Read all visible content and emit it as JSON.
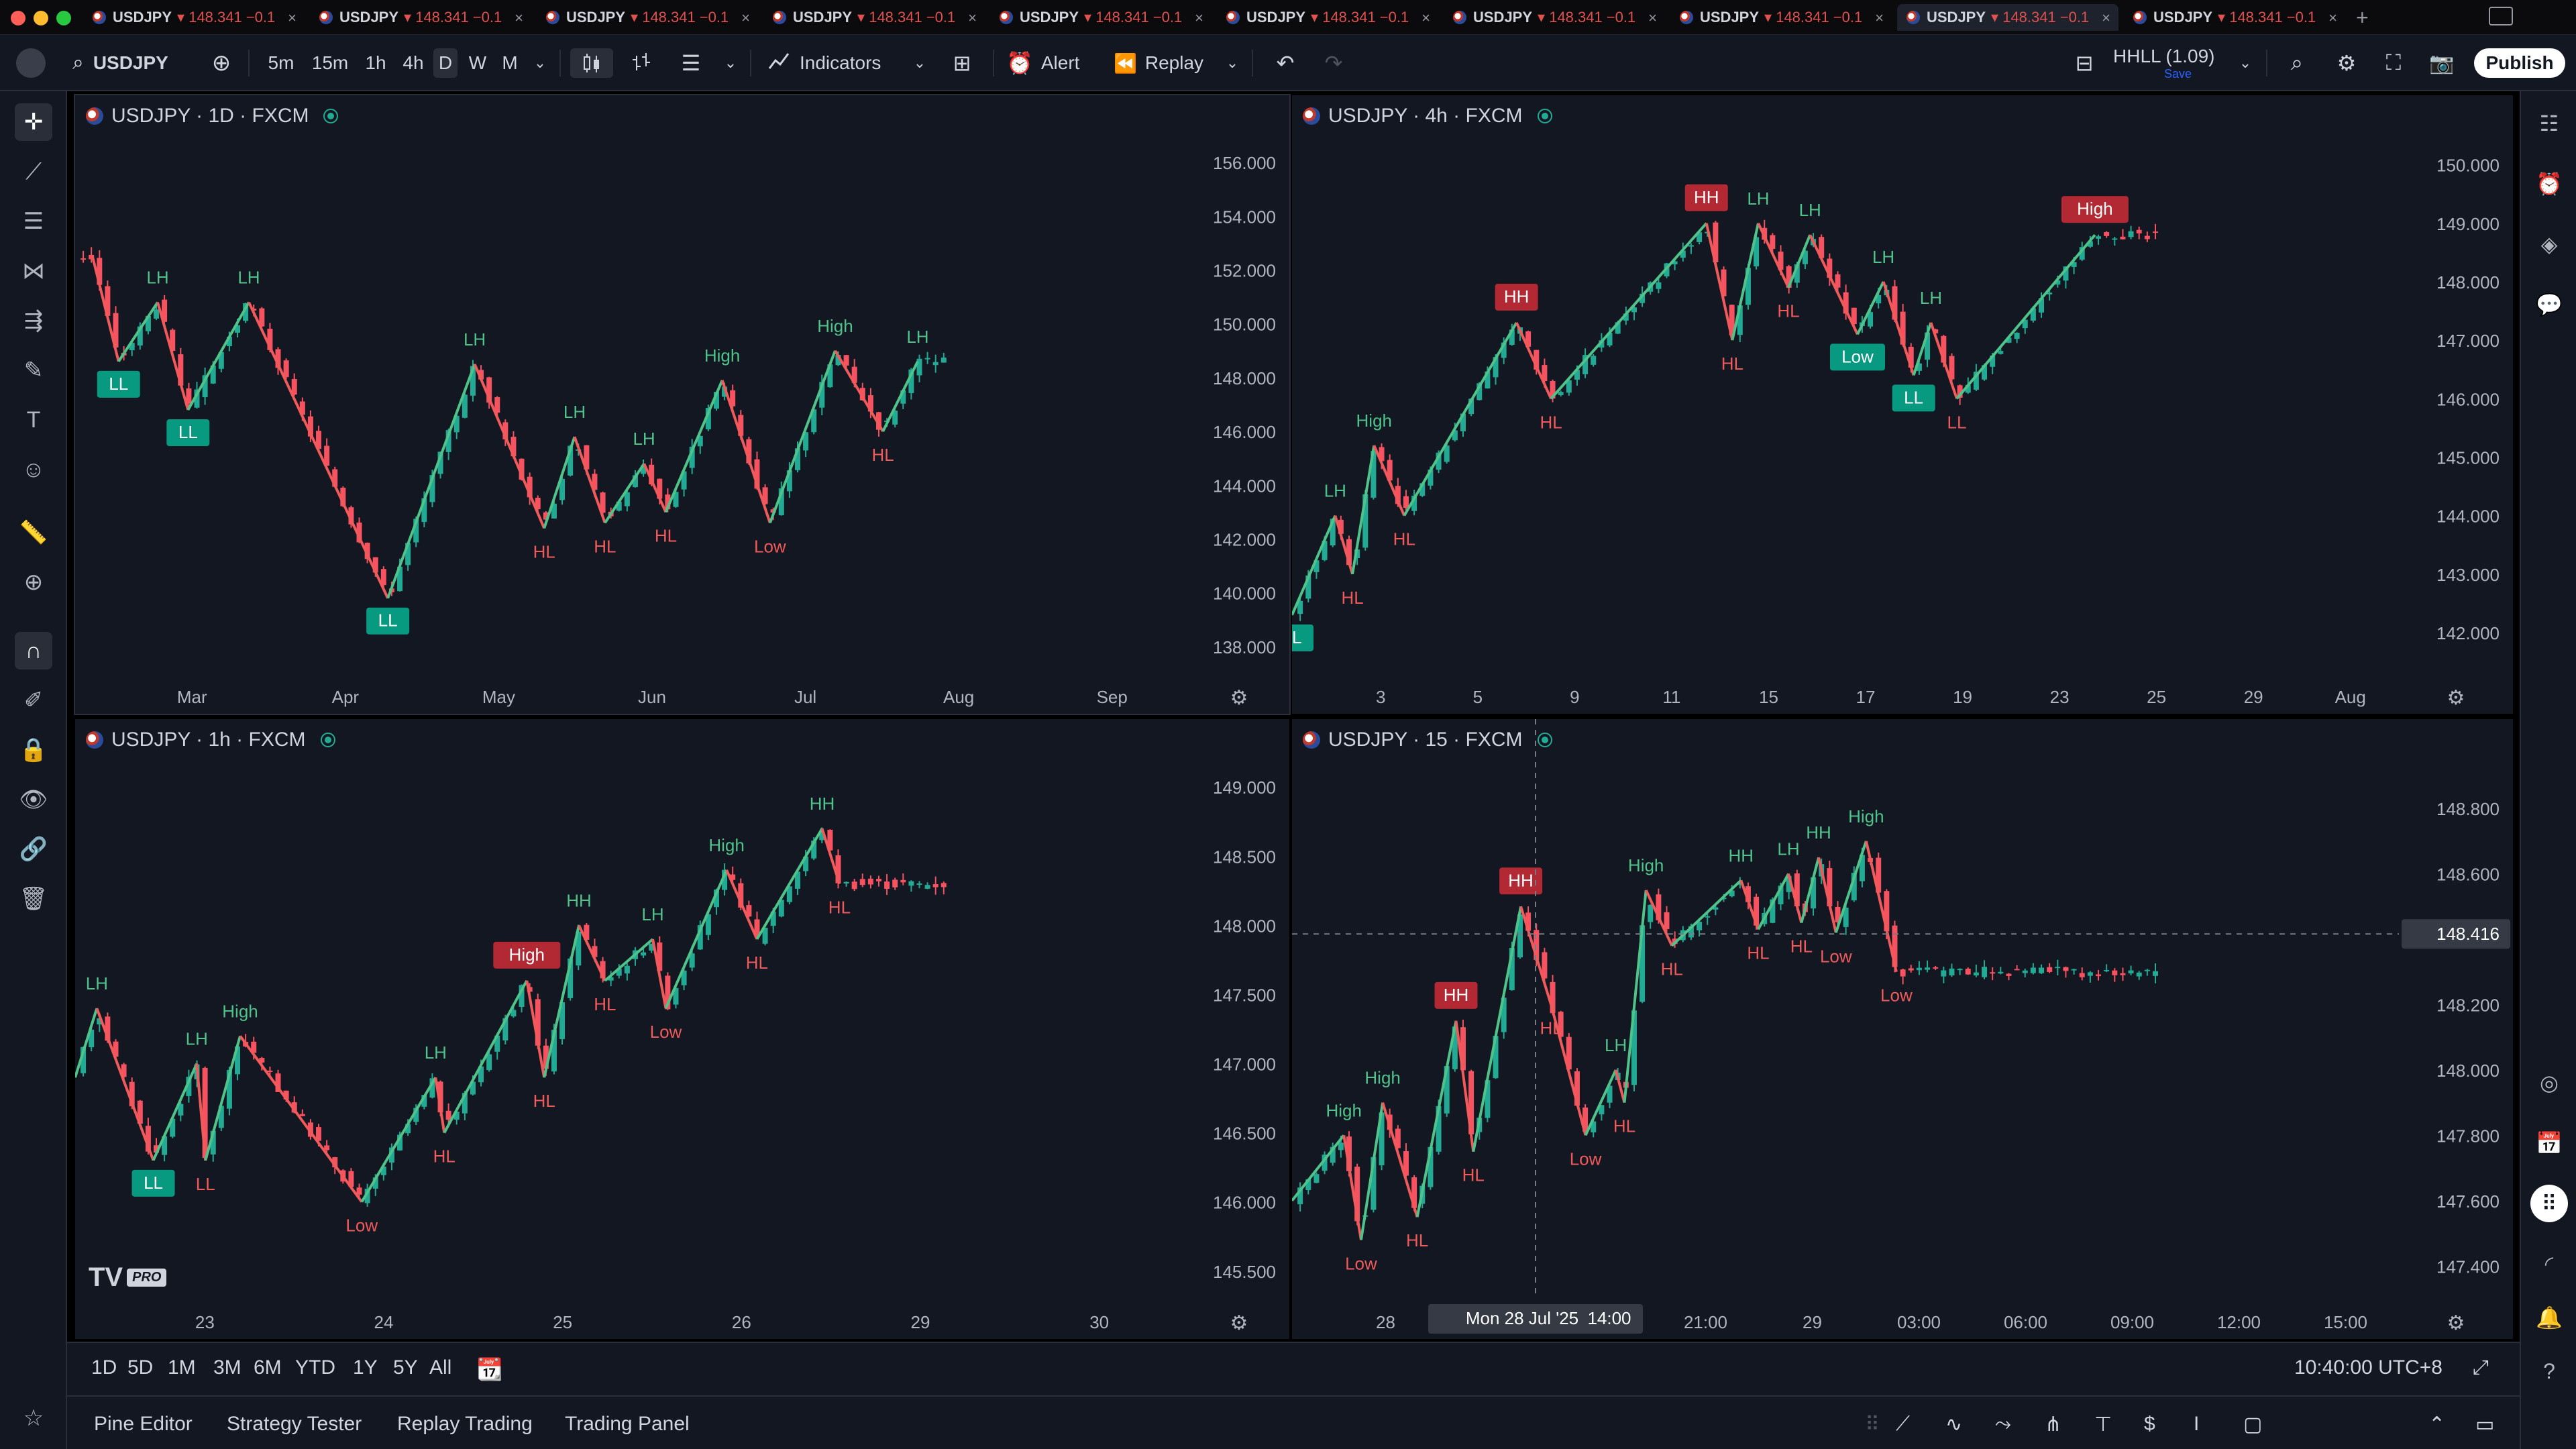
{
  "tabs": [
    {
      "symbol": "USDJPY",
      "price": "▾ 148.341",
      "change": "−0.1"
    },
    {
      "symbol": "USDJPY",
      "price": "▾ 148.341",
      "change": "−0.1"
    },
    {
      "symbol": "USDJPY",
      "price": "▾ 148.341",
      "change": "−0.1"
    },
    {
      "symbol": "USDJPY",
      "price": "▾ 148.341",
      "change": "−0.1"
    },
    {
      "symbol": "USDJPY",
      "price": "▾ 148.341",
      "change": "−0.1"
    },
    {
      "symbol": "USDJPY",
      "price": "▾ 148.341",
      "change": "−0.1"
    },
    {
      "symbol": "USDJPY",
      "price": "▾ 148.341",
      "change": "−0.1"
    },
    {
      "symbol": "USDJPY",
      "price": "▾ 148.341",
      "change": "−0.1"
    },
    {
      "symbol": "USDJPY",
      "price": "▾ 148.341",
      "change": "−0.1"
    },
    {
      "symbol": "USDJPY",
      "price": "▾ 148.341",
      "change": "−0.1"
    }
  ],
  "toolbar": {
    "symbol": "USDJPY",
    "intervals": [
      "5m",
      "15m",
      "1h",
      "4h",
      "D",
      "W",
      "M"
    ],
    "selected_interval": "D",
    "indicators_label": "Indicators",
    "alert_label": "Alert",
    "replay_label": "Replay",
    "layout_name": "HHLL (1.09)",
    "layout_status": "Save",
    "publish_label": "Publish"
  },
  "colors": {
    "up": "#22ab94",
    "down": "#f7525f",
    "up_label": "#4fc38a",
    "down_label": "#f05a5a",
    "box_green": "#089981",
    "box_red": "#b22833",
    "bg": "#131722",
    "axis_text": "#b2b5be"
  },
  "panes": [
    {
      "legend": "USDJPY · 1D · FXCM",
      "y_ticks": [
        "156.000",
        "154.000",
        "152.000",
        "150.000",
        "148.000",
        "146.000",
        "144.000",
        "142.000",
        "140.000",
        "138.000"
      ],
      "y_range": [
        137,
        157
      ],
      "x_ticks": [
        "Mar",
        "Apr",
        "May",
        "Jun",
        "Jul",
        "Aug",
        "Sep"
      ],
      "pivots": [
        {
          "t": 0.02,
          "p": 152.5
        },
        {
          "t": 0.05,
          "p": 148.6,
          "label": "LL",
          "box": true,
          "color": "green"
        },
        {
          "t": 0.095,
          "p": 150.8,
          "label": "LH",
          "color": "green"
        },
        {
          "t": 0.13,
          "p": 146.8,
          "label": "LL",
          "box": true,
          "color": "green"
        },
        {
          "t": 0.2,
          "p": 150.8,
          "label": "LH",
          "color": "green"
        },
        {
          "t": 0.36,
          "p": 139.8,
          "label": "LL",
          "box": true,
          "color": "green"
        },
        {
          "t": 0.46,
          "p": 148.5,
          "label": "LH",
          "color": "green"
        },
        {
          "t": 0.54,
          "p": 142.4,
          "label": "HL",
          "color": "red"
        },
        {
          "t": 0.575,
          "p": 145.8,
          "label": "LH",
          "color": "green"
        },
        {
          "t": 0.61,
          "p": 142.6,
          "label": "HL",
          "color": "red"
        },
        {
          "t": 0.655,
          "p": 144.8,
          "label": "LH",
          "color": "green"
        },
        {
          "t": 0.68,
          "p": 143.0,
          "label": "HL",
          "color": "red"
        },
        {
          "t": 0.745,
          "p": 147.9,
          "label": "High",
          "color": "green"
        },
        {
          "t": 0.8,
          "p": 142.6,
          "label": "Low",
          "color": "red"
        },
        {
          "t": 0.875,
          "p": 149.0,
          "label": "High",
          "color": "green"
        },
        {
          "t": 0.93,
          "p": 146.0,
          "label": "HL",
          "color": "red"
        },
        {
          "t": 0.97,
          "p": 148.6,
          "label": "LH",
          "color": "green"
        }
      ]
    },
    {
      "legend": "USDJPY · 4h · FXCM",
      "y_ticks": [
        "150.000",
        "149.000",
        "148.000",
        "147.000",
        "146.000",
        "145.000",
        "144.000",
        "143.000",
        "142.000"
      ],
      "y_range": [
        141.3,
        150.5
      ],
      "x_ticks": [
        "3",
        "5",
        "9",
        "11",
        "15",
        "17",
        "19",
        "23",
        "25",
        "29",
        "Aug"
      ],
      "pivots": [
        {
          "t": 0.0,
          "p": 142.3,
          "label": "LL",
          "box": true,
          "color": "green"
        },
        {
          "t": 0.05,
          "p": 144.0,
          "label": "LH",
          "color": "green"
        },
        {
          "t": 0.07,
          "p": 143.0,
          "label": "HL",
          "color": "red"
        },
        {
          "t": 0.095,
          "p": 145.2,
          "label": "High",
          "color": "green"
        },
        {
          "t": 0.13,
          "p": 144.0,
          "label": "HL",
          "color": "red"
        },
        {
          "t": 0.26,
          "p": 147.3,
          "label": "HH",
          "box": true,
          "color": "red"
        },
        {
          "t": 0.3,
          "p": 146.0,
          "label": "HL",
          "color": "red"
        },
        {
          "t": 0.48,
          "p": 149.0,
          "label": "HH",
          "box": true,
          "color": "red"
        },
        {
          "t": 0.51,
          "p": 147.0,
          "label": "HL",
          "color": "red"
        },
        {
          "t": 0.54,
          "p": 149.0,
          "label": "LH",
          "color": "green"
        },
        {
          "t": 0.575,
          "p": 147.9,
          "label": "HL",
          "color": "red"
        },
        {
          "t": 0.6,
          "p": 148.8,
          "label": "LH",
          "color": "green"
        },
        {
          "t": 0.655,
          "p": 147.1,
          "label": "Low",
          "box": true,
          "color": "green"
        },
        {
          "t": 0.685,
          "p": 148.0,
          "label": "LH",
          "color": "green"
        },
        {
          "t": 0.72,
          "p": 146.4,
          "label": "LL",
          "box": true,
          "color": "green"
        },
        {
          "t": 0.74,
          "p": 147.3,
          "label": "LH",
          "color": "green"
        },
        {
          "t": 0.77,
          "p": 146.0,
          "label": "LL",
          "color": "red"
        },
        {
          "t": 0.93,
          "p": 148.8,
          "label": "High",
          "box": true,
          "color": "red"
        }
      ]
    },
    {
      "legend": "USDJPY · 1h · FXCM",
      "y_ticks": [
        "149.000",
        "148.500",
        "148.000",
        "147.500",
        "147.000",
        "146.500",
        "146.000",
        "145.500"
      ],
      "y_range": [
        145.3,
        149.2
      ],
      "x_ticks": [
        "23",
        "24",
        "25",
        "26",
        "29",
        "30"
      ],
      "pivots": [
        {
          "t": 0.0,
          "p": 146.9
        },
        {
          "t": 0.025,
          "p": 147.4,
          "label": "LH",
          "color": "green"
        },
        {
          "t": 0.09,
          "p": 146.3,
          "label": "LL",
          "box": true,
          "color": "green"
        },
        {
          "t": 0.14,
          "p": 147.0,
          "label": "LH",
          "color": "green"
        },
        {
          "t": 0.15,
          "p": 146.3,
          "label": "LL",
          "color": "red"
        },
        {
          "t": 0.19,
          "p": 147.2,
          "label": "High",
          "color": "green"
        },
        {
          "t": 0.33,
          "p": 146.0,
          "label": "Low",
          "color": "red"
        },
        {
          "t": 0.415,
          "p": 146.9,
          "label": "LH",
          "color": "green"
        },
        {
          "t": 0.425,
          "p": 146.5,
          "label": "HL",
          "color": "red"
        },
        {
          "t": 0.52,
          "p": 147.6,
          "label": "High",
          "box": true,
          "color": "red"
        },
        {
          "t": 0.54,
          "p": 146.9,
          "label": "HL",
          "color": "red"
        },
        {
          "t": 0.58,
          "p": 148.0,
          "label": "HH",
          "color": "green"
        },
        {
          "t": 0.61,
          "p": 147.6,
          "label": "HL",
          "color": "red"
        },
        {
          "t": 0.665,
          "p": 147.9,
          "label": "LH",
          "color": "green"
        },
        {
          "t": 0.68,
          "p": 147.4,
          "label": "Low",
          "color": "red"
        },
        {
          "t": 0.75,
          "p": 148.4,
          "label": "High",
          "color": "green"
        },
        {
          "t": 0.785,
          "p": 147.9,
          "label": "HL",
          "color": "red"
        },
        {
          "t": 0.86,
          "p": 148.7,
          "label": "HH",
          "color": "green"
        },
        {
          "t": 0.88,
          "p": 148.3,
          "label": "HL",
          "color": "red"
        }
      ]
    },
    {
      "legend": "USDJPY · 15 · FXCM",
      "y_ticks": [
        "148.800",
        "148.600",
        "148.400",
        "148.200",
        "148.000",
        "147.800",
        "147.600",
        "147.400"
      ],
      "y_range": [
        147.3,
        148.95
      ],
      "x_ticks": [
        "28",
        "09:00",
        "18:00",
        "21:00",
        "29",
        "03:00",
        "06:00",
        "09:00",
        "12:00",
        "15:00"
      ],
      "crosshair_date": "Mon 28 Jul '25",
      "crosshair_time": "14:00",
      "current_price": "148.416",
      "pivots": [
        {
          "t": 0.0,
          "p": 147.6
        },
        {
          "t": 0.06,
          "p": 147.8,
          "label": "High",
          "color": "green"
        },
        {
          "t": 0.08,
          "p": 147.48,
          "label": "Low",
          "color": "red"
        },
        {
          "t": 0.105,
          "p": 147.9,
          "label": "High",
          "color": "green"
        },
        {
          "t": 0.145,
          "p": 147.55,
          "label": "HL",
          "color": "red"
        },
        {
          "t": 0.19,
          "p": 148.15,
          "label": "HH",
          "box": true,
          "color": "red"
        },
        {
          "t": 0.21,
          "p": 147.75,
          "label": "HL",
          "color": "red"
        },
        {
          "t": 0.265,
          "p": 148.5,
          "label": "HH",
          "box": true,
          "color": "red"
        },
        {
          "t": 0.3,
          "p": 148.2,
          "label": "HL",
          "color": "red"
        },
        {
          "t": 0.34,
          "p": 147.8,
          "label": "Low",
          "color": "red"
        },
        {
          "t": 0.375,
          "p": 148.0,
          "label": "LH",
          "color": "green"
        },
        {
          "t": 0.385,
          "p": 147.9,
          "label": "HL",
          "color": "red"
        },
        {
          "t": 0.41,
          "p": 148.55,
          "label": "High",
          "color": "green"
        },
        {
          "t": 0.44,
          "p": 148.38,
          "label": "HL",
          "color": "red"
        },
        {
          "t": 0.52,
          "p": 148.58,
          "label": "HH",
          "color": "green"
        },
        {
          "t": 0.54,
          "p": 148.43,
          "label": "HL",
          "color": "red"
        },
        {
          "t": 0.575,
          "p": 148.6,
          "label": "LH",
          "color": "green"
        },
        {
          "t": 0.59,
          "p": 148.45,
          "label": "HL",
          "color": "red"
        },
        {
          "t": 0.61,
          "p": 148.65,
          "label": "HH",
          "color": "green"
        },
        {
          "t": 0.63,
          "p": 148.42,
          "label": "Low",
          "color": "red"
        },
        {
          "t": 0.665,
          "p": 148.7,
          "label": "High",
          "color": "green"
        },
        {
          "t": 0.7,
          "p": 148.3,
          "label": "Low",
          "color": "red"
        }
      ]
    }
  ],
  "bottom": {
    "ranges": [
      "1D",
      "5D",
      "1M",
      "3M",
      "6M",
      "YTD",
      "1Y",
      "5Y",
      "All"
    ],
    "clock": "10:40:00 UTC+8"
  },
  "panel_tabs": [
    "Pine Editor",
    "Strategy Tester",
    "Replay Trading",
    "Trading Panel"
  ],
  "watermark": "PRO"
}
